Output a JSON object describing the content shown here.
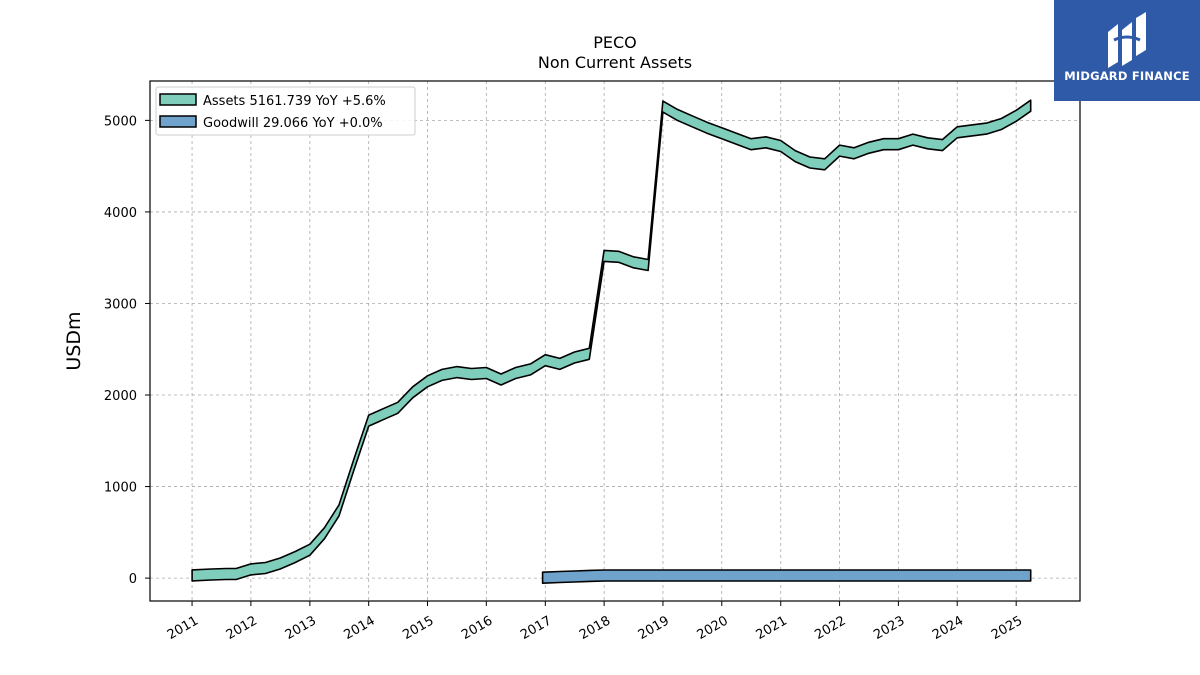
{
  "chart_data": {
    "type": "area",
    "title": "PECO",
    "subtitle": "Non Current  Assets",
    "ylabel": "USDm",
    "ylim": [
      -250,
      5430
    ],
    "xlim": [
      "2010-04-15",
      "2026-02-01"
    ],
    "yticks": [
      0,
      1000,
      2000,
      3000,
      4000,
      5000
    ],
    "xticks": [
      "2011",
      "2012",
      "2013",
      "2014",
      "2015",
      "2016",
      "2017",
      "2018",
      "2019",
      "2020",
      "2021",
      "2022",
      "2023",
      "2024",
      "2025"
    ],
    "grid": true,
    "legend_position": "top-left",
    "series": [
      {
        "name": "Assets",
        "legend": "Assets  5161.739 YoY +5.6%",
        "color": "#7fcdbb",
        "x": [
          "2011-01-01",
          "2011-05-01",
          "2011-08-01",
          "2011-10-01",
          "2012-01-01",
          "2012-04-01",
          "2012-07-01",
          "2012-10-01",
          "2013-01-01",
          "2013-04-01",
          "2013-07-01",
          "2013-10-01",
          "2014-01-01",
          "2014-04-01",
          "2014-07-01",
          "2014-10-01",
          "2015-01-01",
          "2015-04-01",
          "2015-07-01",
          "2015-10-01",
          "2016-01-01",
          "2016-04-01",
          "2016-07-01",
          "2016-10-01",
          "2017-01-01",
          "2017-04-01",
          "2017-07-01",
          "2017-10-01",
          "2018-01-01",
          "2018-04-01",
          "2018-07-01",
          "2018-10-01",
          "2019-01-01",
          "2019-04-01",
          "2019-07-01",
          "2019-10-01",
          "2020-01-01",
          "2020-04-01",
          "2020-07-01",
          "2020-10-01",
          "2021-01-01",
          "2021-04-01",
          "2021-07-01",
          "2021-10-01",
          "2022-01-01",
          "2022-04-01",
          "2022-07-01",
          "2022-10-01",
          "2023-01-01",
          "2023-04-01",
          "2023-07-01",
          "2023-10-01",
          "2024-01-01",
          "2024-04-01",
          "2024-07-01",
          "2024-10-01",
          "2025-01-01",
          "2025-04-01"
        ],
        "values": [
          30,
          40,
          45,
          45,
          95,
          110,
          160,
          230,
          310,
          490,
          740,
          1240,
          1720,
          1790,
          1860,
          2030,
          2150,
          2220,
          2250,
          2230,
          2240,
          2170,
          2240,
          2280,
          2380,
          2340,
          2410,
          2450,
          3520,
          3510,
          3450,
          3420,
          5150,
          5060,
          4990,
          4920,
          4860,
          4800,
          4740,
          4760,
          4720,
          4610,
          4540,
          4520,
          4670,
          4640,
          4700,
          4740,
          4740,
          4790,
          4750,
          4730,
          4870,
          4890,
          4910,
          4960,
          5050,
          5160
        ]
      },
      {
        "name": "Goodwill",
        "legend": "Goodwill  29.066 YoY +0.0%",
        "color": "#6fa3cc",
        "x": [
          "2016-12-15",
          "2017-04-01",
          "2017-07-01",
          "2017-10-01",
          "2018-01-01",
          "2018-07-01",
          "2019-01-01",
          "2020-01-01",
          "2021-01-01",
          "2022-01-01",
          "2023-01-01",
          "2024-01-01",
          "2025-01-01",
          "2025-04-01"
        ],
        "values": [
          5,
          12,
          18,
          24,
          29,
          29,
          29,
          29,
          29,
          29,
          29,
          29,
          29,
          29.066
        ]
      }
    ]
  },
  "branding": {
    "name": "MIDGARD FINANCE",
    "logo_icon": "midgard-logo-icon",
    "background": "#2f5aa8"
  }
}
